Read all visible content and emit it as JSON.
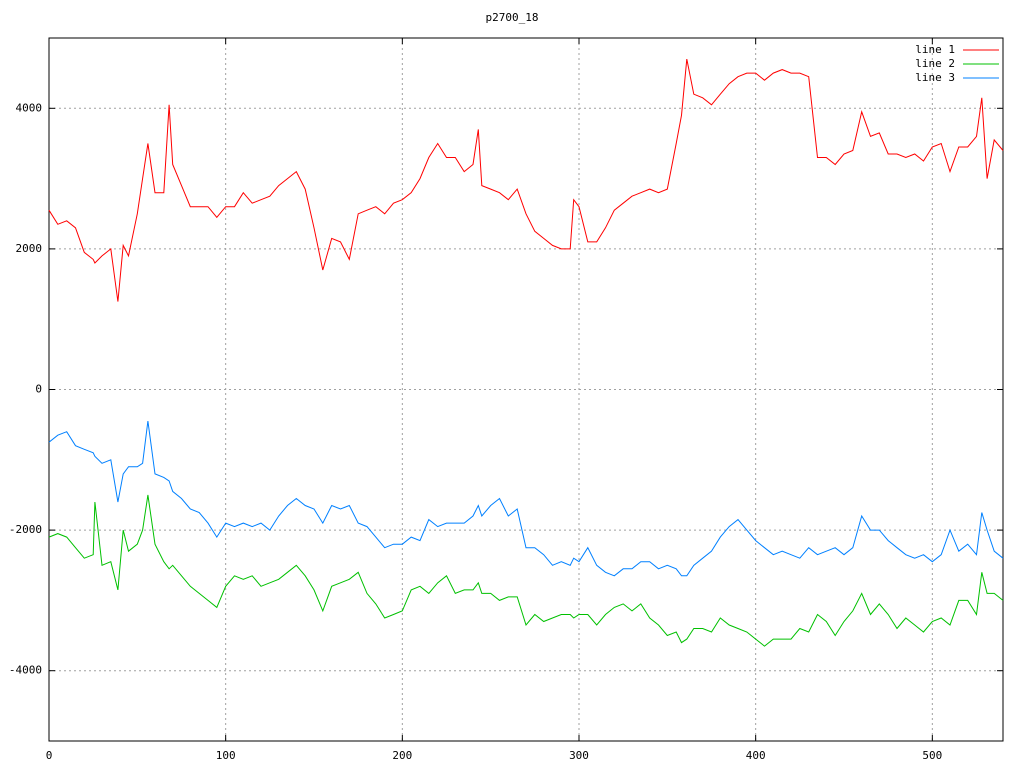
{
  "chart_data": {
    "type": "line",
    "title": "p2700_18",
    "x": [
      0,
      5,
      10,
      15,
      20,
      25,
      26,
      30,
      35,
      39,
      42,
      45,
      50,
      53,
      56,
      60,
      65,
      68,
      70,
      75,
      80,
      85,
      90,
      95,
      100,
      105,
      110,
      115,
      120,
      125,
      130,
      135,
      140,
      145,
      150,
      155,
      160,
      165,
      170,
      175,
      180,
      185,
      190,
      195,
      200,
      205,
      210,
      215,
      220,
      225,
      230,
      235,
      240,
      243,
      245,
      250,
      255,
      260,
      265,
      270,
      275,
      280,
      285,
      290,
      295,
      297,
      300,
      305,
      310,
      315,
      320,
      325,
      330,
      335,
      340,
      345,
      350,
      355,
      358,
      361,
      365,
      370,
      375,
      380,
      385,
      390,
      395,
      400,
      405,
      410,
      415,
      420,
      425,
      430,
      435,
      440,
      445,
      450,
      455,
      460,
      465,
      470,
      475,
      480,
      485,
      490,
      495,
      500,
      505,
      510,
      515,
      520,
      525,
      528,
      531,
      535,
      540
    ],
    "series": [
      {
        "name": "line 1",
        "color": "#ff0000",
        "values": [
          2550,
          2350,
          2400,
          2300,
          1950,
          1850,
          1800,
          1900,
          2000,
          1250,
          2050,
          1900,
          2500,
          3000,
          3500,
          2800,
          2800,
          4050,
          3200,
          2900,
          2600,
          2600,
          2600,
          2450,
          2600,
          2600,
          2800,
          2650,
          2700,
          2750,
          2900,
          3000,
          3100,
          2850,
          2300,
          1700,
          2150,
          2100,
          1850,
          2500,
          2550,
          2600,
          2500,
          2650,
          2700,
          2800,
          3000,
          3300,
          3500,
          3300,
          3300,
          3100,
          3200,
          3700,
          2900,
          2850,
          2800,
          2700,
          2850,
          2500,
          2250,
          2150,
          2050,
          2000,
          2000,
          2700,
          2600,
          2100,
          2100,
          2300,
          2550,
          2650,
          2750,
          2800,
          2850,
          2800,
          2850,
          3500,
          3900,
          4700,
          4200,
          4150,
          4050,
          4200,
          4350,
          4450,
          4500,
          4500,
          4400,
          4500,
          4550,
          4500,
          4500,
          4450,
          3300,
          3300,
          3200,
          3350,
          3400,
          3950,
          3600,
          3650,
          3350,
          3350,
          3300,
          3350,
          3250,
          3450,
          3500,
          3100,
          3450,
          3450,
          3600,
          4150,
          3000,
          3550,
          3400
        ]
      },
      {
        "name": "line 2",
        "color": "#00c000",
        "values": [
          -2100,
          -2050,
          -2100,
          -2250,
          -2400,
          -2350,
          -1600,
          -2500,
          -2450,
          -2850,
          -2000,
          -2300,
          -2200,
          -2000,
          -1500,
          -2200,
          -2450,
          -2550,
          -2500,
          -2650,
          -2800,
          -2900,
          -3000,
          -3100,
          -2800,
          -2650,
          -2700,
          -2650,
          -2800,
          -2750,
          -2700,
          -2600,
          -2500,
          -2650,
          -2850,
          -3150,
          -2800,
          -2750,
          -2700,
          -2600,
          -2900,
          -3050,
          -3250,
          -3200,
          -3150,
          -2850,
          -2800,
          -2900,
          -2750,
          -2650,
          -2900,
          -2850,
          -2850,
          -2750,
          -2900,
          -2900,
          -3000,
          -2950,
          -2950,
          -3350,
          -3200,
          -3300,
          -3250,
          -3200,
          -3200,
          -3250,
          -3200,
          -3200,
          -3350,
          -3200,
          -3100,
          -3050,
          -3150,
          -3050,
          -3250,
          -3350,
          -3500,
          -3450,
          -3600,
          -3550,
          -3400,
          -3400,
          -3450,
          -3250,
          -3350,
          -3400,
          -3450,
          -3550,
          -3650,
          -3550,
          -3550,
          -3550,
          -3400,
          -3450,
          -3200,
          -3300,
          -3500,
          -3300,
          -3150,
          -2900,
          -3200,
          -3050,
          -3200,
          -3400,
          -3250,
          -3350,
          -3450,
          -3300,
          -3250,
          -3350,
          -3000,
          -3000,
          -3200,
          -2600,
          -2900,
          -2900,
          -3000
        ]
      },
      {
        "name": "line 3",
        "color": "#0080ff",
        "values": [
          -750,
          -650,
          -600,
          -800,
          -850,
          -900,
          -950,
          -1050,
          -1000,
          -1600,
          -1200,
          -1100,
          -1100,
          -1050,
          -450,
          -1200,
          -1250,
          -1300,
          -1450,
          -1550,
          -1700,
          -1750,
          -1900,
          -2100,
          -1900,
          -1950,
          -1900,
          -1950,
          -1900,
          -2000,
          -1800,
          -1650,
          -1550,
          -1650,
          -1700,
          -1900,
          -1650,
          -1700,
          -1650,
          -1900,
          -1950,
          -2100,
          -2250,
          -2200,
          -2200,
          -2100,
          -2150,
          -1850,
          -1950,
          -1900,
          -1900,
          -1900,
          -1800,
          -1650,
          -1800,
          -1650,
          -1550,
          -1800,
          -1700,
          -2250,
          -2250,
          -2350,
          -2500,
          -2450,
          -2500,
          -2400,
          -2450,
          -2250,
          -2500,
          -2600,
          -2650,
          -2550,
          -2550,
          -2450,
          -2450,
          -2550,
          -2500,
          -2550,
          -2650,
          -2650,
          -2500,
          -2400,
          -2300,
          -2100,
          -1950,
          -1850,
          -2000,
          -2150,
          -2250,
          -2350,
          -2300,
          -2350,
          -2400,
          -2250,
          -2350,
          -2300,
          -2250,
          -2350,
          -2250,
          -1800,
          -2000,
          -2000,
          -2150,
          -2250,
          -2350,
          -2400,
          -2350,
          -2450,
          -2350,
          -2000,
          -2300,
          -2200,
          -2350,
          -1750,
          -2000,
          -2300,
          -2400
        ]
      }
    ],
    "xlim": [
      0,
      540
    ],
    "ylim": [
      -5000,
      5000
    ],
    "xticks": [
      0,
      100,
      200,
      300,
      400,
      500
    ],
    "yticks": [
      -4000,
      -2000,
      0,
      2000,
      4000
    ],
    "grid": true,
    "legend": "top-right"
  }
}
